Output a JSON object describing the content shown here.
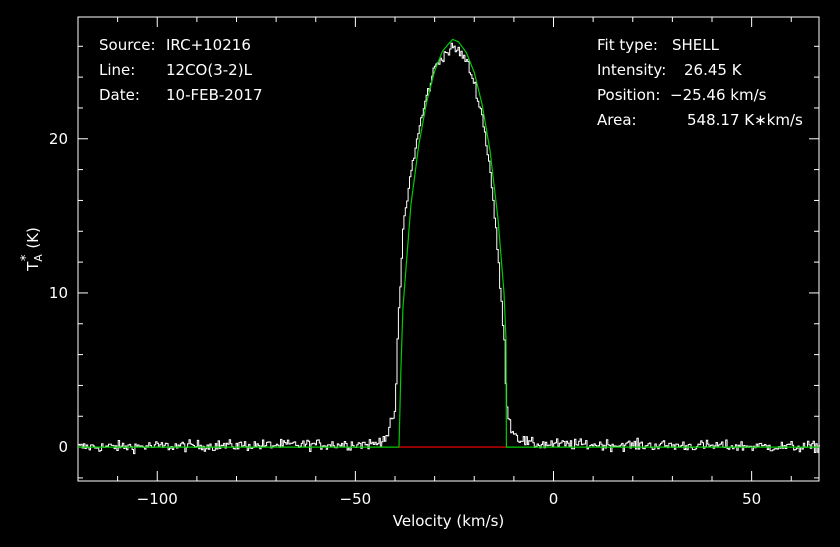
{
  "header_left": {
    "source_label": "Source:",
    "source_value": "IRC+10216",
    "line_label": "Line:",
    "line_value": "12CO(3-2)L",
    "date_label": "Date:",
    "date_value": "10-FEB-2017"
  },
  "header_right": {
    "fit_label": "Fit type:",
    "fit_value": "SHELL",
    "intensity_label": "Intensity:",
    "intensity_value": "26.45 K",
    "position_label": "Position:",
    "position_value": "-25.46 km/s",
    "area_label": "Area:",
    "area_value": "548.17 K*km/s"
  },
  "colors": {
    "spectrum": "#ffffff",
    "fit": "#00cc00",
    "baseline": "#ff0000",
    "axes": "#ffffff"
  },
  "chart_data": {
    "type": "line",
    "xlabel": "Velocity (km/s)",
    "ylabel_main": "T",
    "ylabel_sub": "A",
    "ylabel_sup": "*",
    "ylabel_unit": "(K)",
    "xlim": [
      -120,
      67
    ],
    "ylim": [
      -2.2,
      27.9
    ],
    "xticks": [
      -100,
      -50,
      0,
      50
    ],
    "xtick_labels": [
      "-100",
      "-50",
      "0",
      "50"
    ],
    "yticks": [
      0,
      10,
      20
    ],
    "ytick_labels": [
      "0",
      "10",
      "20"
    ],
    "series": [
      {
        "kind": "spectrum",
        "noise_rms": 0.25,
        "x": [
          -120,
          -45,
          -42,
          -40,
          -39.5,
          -38,
          -36,
          -34,
          -32,
          -30,
          -28,
          -26,
          -25.5,
          -24,
          -22,
          -20,
          -18,
          -16,
          -14,
          -12.5,
          -12,
          -11,
          -9,
          -6,
          67
        ],
        "y": [
          0,
          0.2,
          0.8,
          2.5,
          7.0,
          14.5,
          18.0,
          20.7,
          22.9,
          24.7,
          25.4,
          25.8,
          25.9,
          25.7,
          25.0,
          23.5,
          21.3,
          17.8,
          12.0,
          6.5,
          3.0,
          1.3,
          0.6,
          0.2,
          0
        ]
      },
      {
        "kind": "fit",
        "x": [
          -120,
          -39,
          -38.5,
          -38,
          -36,
          -34,
          -32,
          -30,
          -28,
          -26,
          -25.46,
          -24,
          -22,
          -20,
          -18,
          -16,
          -14,
          -12.5,
          -12,
          -11.9,
          67
        ],
        "y": [
          0,
          0,
          5.0,
          9.0,
          15.7,
          19.6,
          22.4,
          24.4,
          25.7,
          26.3,
          26.45,
          26.3,
          25.6,
          24.3,
          22.2,
          19.2,
          14.8,
          10.0,
          7.0,
          0,
          0
        ]
      },
      {
        "kind": "baseline",
        "x": [
          -39,
          -12
        ],
        "y": [
          0,
          0
        ]
      }
    ]
  }
}
